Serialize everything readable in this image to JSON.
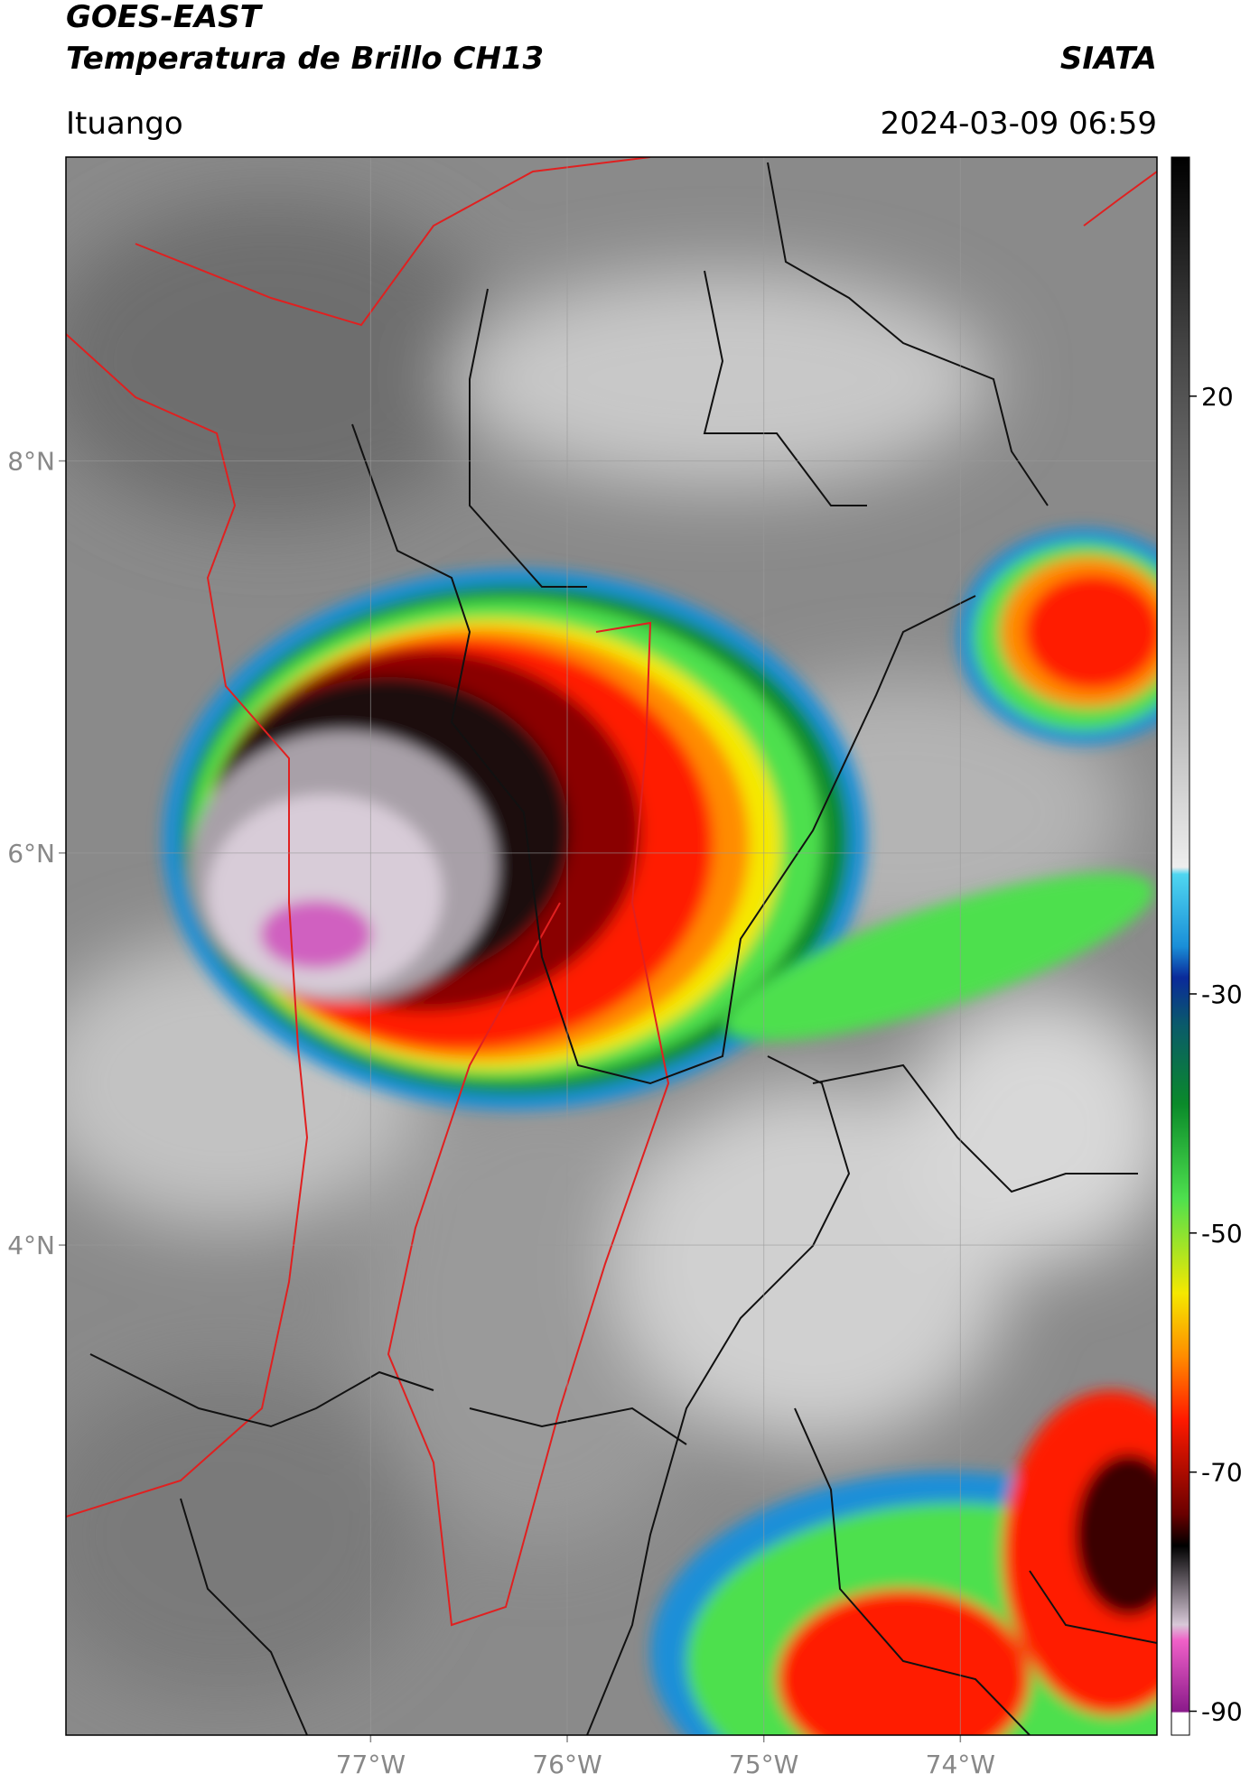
{
  "header": {
    "title": "GOES-EAST",
    "subtitle": "Temperatura de Brillo CH13",
    "credit": "SIATA",
    "location": "Ituango",
    "datetime": "2024-03-09 06:59"
  },
  "map": {
    "xlim": [
      -78.55,
      -73.0
    ],
    "ylim": [
      1.5,
      9.55
    ],
    "xticks": [
      {
        "value": -77,
        "label": "77°W"
      },
      {
        "value": -76,
        "label": "76°W"
      },
      {
        "value": -75,
        "label": "75°W"
      },
      {
        "value": -74,
        "label": "74°W"
      }
    ],
    "yticks": [
      {
        "value": 8,
        "label": "8°N"
      },
      {
        "value": 6,
        "label": "6°N"
      },
      {
        "value": 4,
        "label": "4°N"
      }
    ],
    "grid": true
  },
  "colorbar": {
    "lim": [
      -92,
      40
    ],
    "ticks": [
      20,
      -30,
      -50,
      -70,
      -90
    ]
  }
}
